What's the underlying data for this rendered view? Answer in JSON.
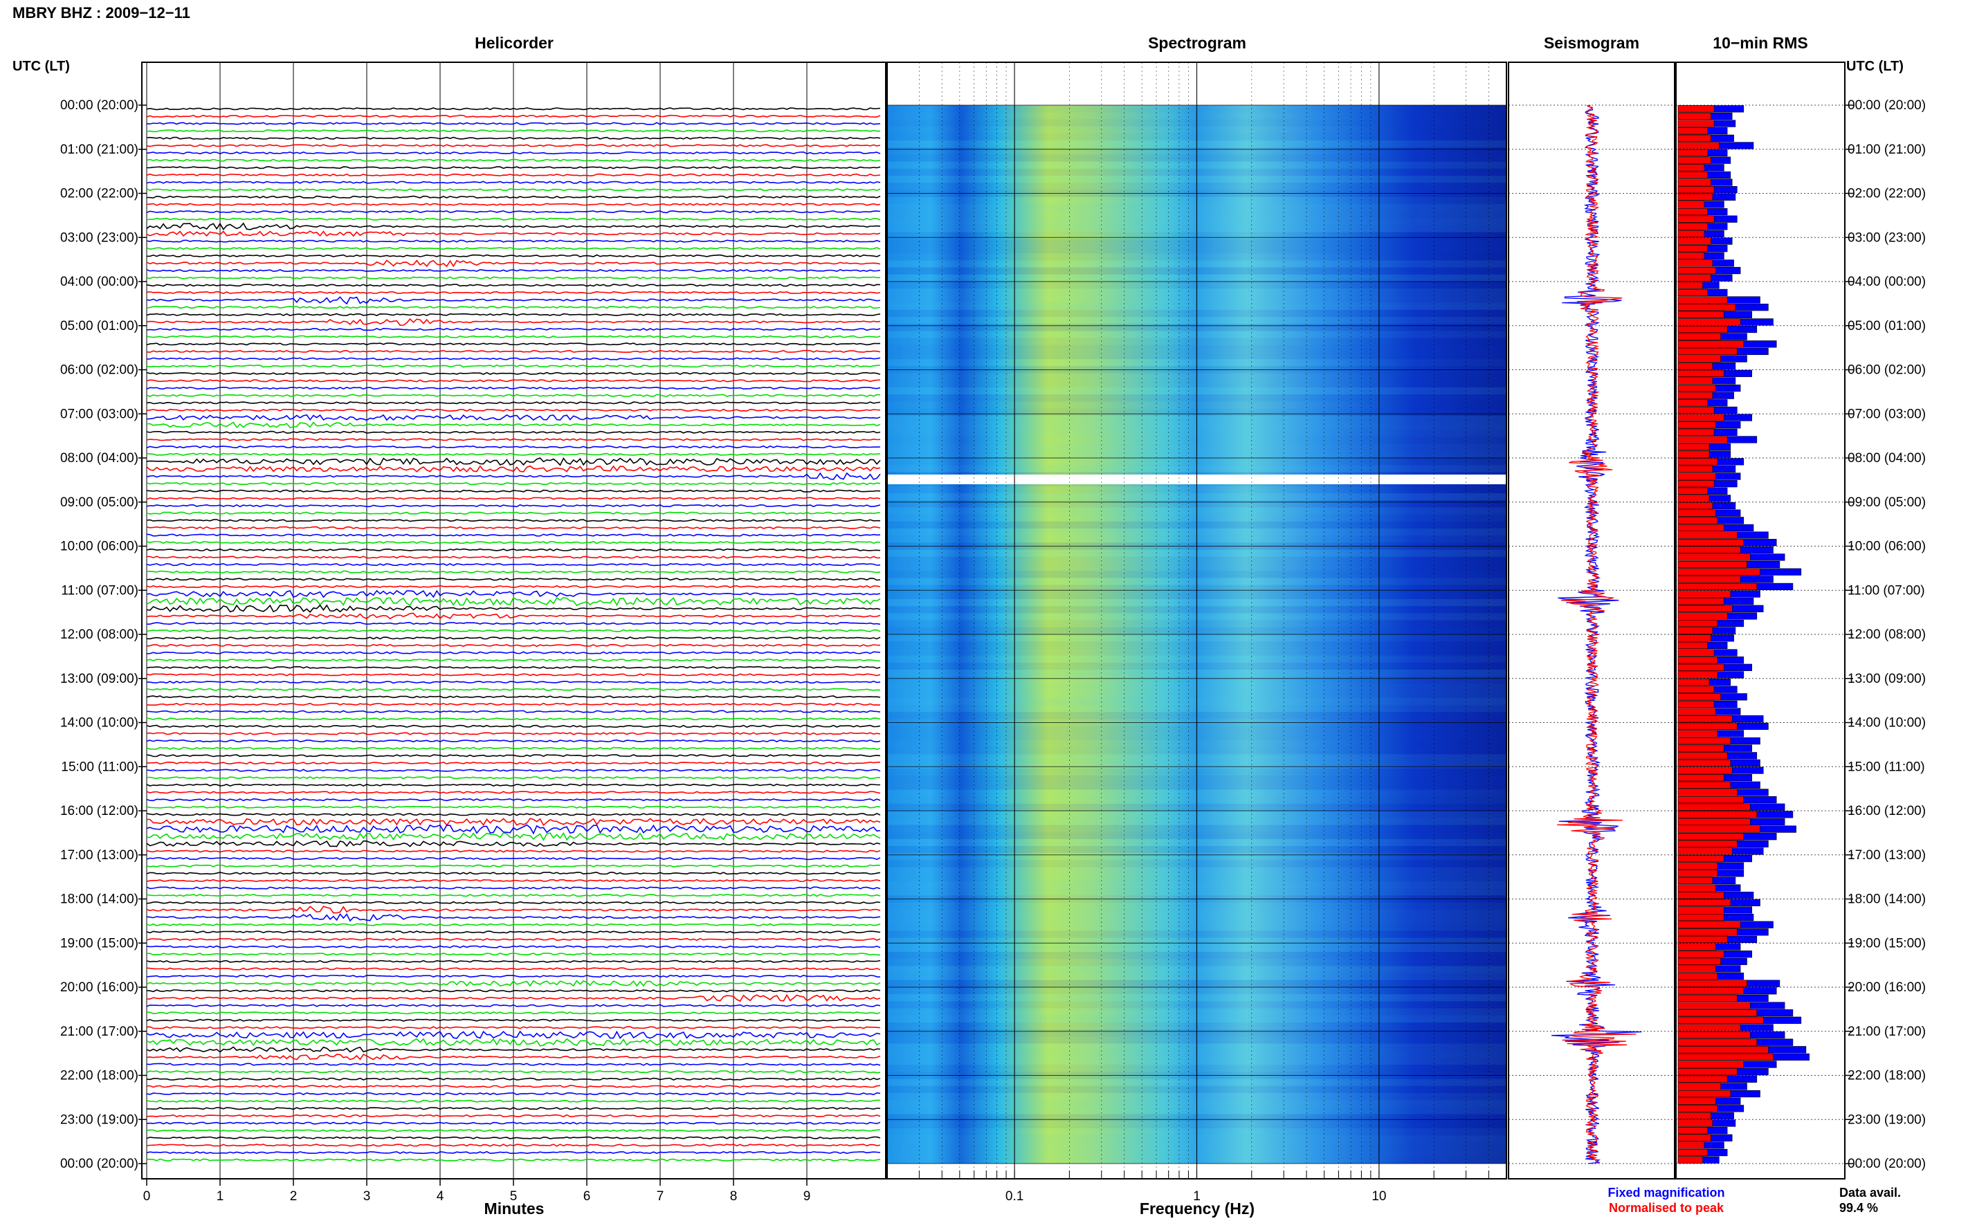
{
  "header": {
    "station_date": "MBRY BHZ : 2009−12−11"
  },
  "axis_labels": {
    "utc_left": "UTC (LT)",
    "utc_right": "UTC (LT)",
    "minutes": "Minutes",
    "frequency": "Frequency (Hz)"
  },
  "panels": {
    "helicorder": "Helicorder",
    "spectrogram": "Spectrogram",
    "seismogram": "Seismogram",
    "rms": "10−min RMS"
  },
  "legend": {
    "fixed": "Fixed magnification",
    "normalised": "Normalised to peak",
    "fixed_color": "#0000ff",
    "normalised_color": "#ff0000"
  },
  "data_avail": {
    "label": "Data avail.",
    "value": "99.4 %"
  },
  "colors": {
    "trace_cycle": [
      "#000000",
      "#ff0000",
      "#0000ff",
      "#00dd00"
    ],
    "spectro_low": "#0a2bd0",
    "spectro_mid": "#29a8f0",
    "spectro_high": "#e8f040"
  },
  "chart_data": [
    {
      "type": "line",
      "title": "Helicorder",
      "xlabel": "Minutes",
      "ylabel": "UTC (LT)",
      "xlim": [
        0,
        10
      ],
      "x_ticks": [
        "0",
        "1",
        "2",
        "3",
        "4",
        "5",
        "6",
        "7",
        "8",
        "9"
      ],
      "row_labels": [
        "00:00 (20:00)",
        "01:00 (21:00)",
        "02:00 (22:00)",
        "03:00 (23:00)",
        "04:00 (00:00)",
        "05:00 (01:00)",
        "06:00 (02:00)",
        "07:00 (03:00)",
        "08:00 (04:00)",
        "09:00 (05:00)",
        "10:00 (06:00)",
        "11:00 (07:00)",
        "12:00 (08:00)",
        "13:00 (09:00)",
        "14:00 (10:00)",
        "15:00 (11:00)",
        "16:00 (12:00)",
        "17:00 (13:00)",
        "18:00 (14:00)",
        "19:00 (15:00)",
        "20:00 (16:00)",
        "21:00 (17:00)",
        "22:00 (18:00)",
        "23:00 (19:00)",
        "00:00 (20:00)"
      ],
      "traces_per_hour": 6,
      "grid": true
    },
    {
      "type": "heatmap",
      "title": "Spectrogram",
      "xlabel": "Frequency (Hz)",
      "x_scale": "log",
      "xlim": [
        0.02,
        50
      ],
      "x_ticks": [
        "0.1",
        "1",
        "10"
      ],
      "ylim": [
        "00:00",
        "24:00"
      ],
      "data_gap": "08:20"
    },
    {
      "type": "line",
      "title": "Seismogram",
      "series": [
        {
          "name": "Fixed magnification",
          "color": "#0000ff"
        },
        {
          "name": "Normalised to peak",
          "color": "#ff0000"
        }
      ]
    },
    {
      "type": "bar",
      "title": "10−min RMS",
      "orientation": "horizontal",
      "categories_count": 144,
      "series": [
        {
          "name": "Fixed magnification",
          "color": "#0000ff",
          "values": [
            0.4,
            0.33,
            0.35,
            0.3,
            0.34,
            0.46,
            0.3,
            0.32,
            0.28,
            0.32,
            0.33,
            0.36,
            0.35,
            0.28,
            0.3,
            0.36,
            0.3,
            0.28,
            0.33,
            0.3,
            0.28,
            0.34,
            0.38,
            0.33,
            0.25,
            0.3,
            0.5,
            0.55,
            0.45,
            0.58,
            0.48,
            0.42,
            0.6,
            0.55,
            0.42,
            0.35,
            0.45,
            0.35,
            0.38,
            0.34,
            0.3,
            0.36,
            0.45,
            0.38,
            0.36,
            0.48,
            0.32,
            0.32,
            0.4,
            0.35,
            0.38,
            0.36,
            0.3,
            0.32,
            0.35,
            0.38,
            0.4,
            0.46,
            0.55,
            0.6,
            0.58,
            0.65,
            0.62,
            0.75,
            0.58,
            0.7,
            0.5,
            0.46,
            0.52,
            0.48,
            0.4,
            0.35,
            0.34,
            0.3,
            0.36,
            0.4,
            0.45,
            0.4,
            0.32,
            0.36,
            0.42,
            0.36,
            0.38,
            0.52,
            0.55,
            0.4,
            0.5,
            0.45,
            0.48,
            0.5,
            0.52,
            0.45,
            0.5,
            0.55,
            0.6,
            0.65,
            0.7,
            0.65,
            0.72,
            0.6,
            0.55,
            0.52,
            0.45,
            0.4,
            0.4,
            0.35,
            0.38,
            0.46,
            0.5,
            0.45,
            0.46,
            0.58,
            0.55,
            0.48,
            0.38,
            0.45,
            0.42,
            0.38,
            0.4,
            0.62,
            0.6,
            0.55,
            0.65,
            0.7,
            0.75,
            0.58,
            0.65,
            0.7,
            0.78,
            0.8,
            0.6,
            0.55,
            0.48,
            0.42,
            0.5,
            0.38,
            0.4,
            0.34,
            0.35,
            0.3,
            0.33,
            0.28,
            0.3,
            0.25
          ]
        },
        {
          "name": "Normalised to peak",
          "color": "#ff0000",
          "values": [
            0.22,
            0.2,
            0.22,
            0.18,
            0.2,
            0.25,
            0.18,
            0.2,
            0.16,
            0.18,
            0.2,
            0.22,
            0.21,
            0.16,
            0.18,
            0.22,
            0.18,
            0.16,
            0.2,
            0.18,
            0.16,
            0.21,
            0.23,
            0.2,
            0.15,
            0.18,
            0.3,
            0.35,
            0.28,
            0.38,
            0.3,
            0.26,
            0.4,
            0.36,
            0.26,
            0.21,
            0.28,
            0.21,
            0.23,
            0.21,
            0.18,
            0.22,
            0.28,
            0.23,
            0.22,
            0.3,
            0.19,
            0.19,
            0.24,
            0.21,
            0.23,
            0.22,
            0.18,
            0.19,
            0.21,
            0.23,
            0.24,
            0.28,
            0.36,
            0.4,
            0.38,
            0.44,
            0.42,
            0.5,
            0.38,
            0.48,
            0.32,
            0.28,
            0.33,
            0.3,
            0.24,
            0.21,
            0.2,
            0.18,
            0.22,
            0.24,
            0.28,
            0.24,
            0.19,
            0.22,
            0.26,
            0.22,
            0.23,
            0.33,
            0.36,
            0.24,
            0.32,
            0.28,
            0.3,
            0.32,
            0.33,
            0.28,
            0.32,
            0.36,
            0.4,
            0.44,
            0.48,
            0.44,
            0.5,
            0.4,
            0.36,
            0.33,
            0.28,
            0.24,
            0.24,
            0.21,
            0.23,
            0.28,
            0.32,
            0.28,
            0.28,
            0.38,
            0.36,
            0.3,
            0.23,
            0.28,
            0.26,
            0.23,
            0.24,
            0.42,
            0.4,
            0.36,
            0.44,
            0.48,
            0.52,
            0.38,
            0.44,
            0.48,
            0.55,
            0.58,
            0.4,
            0.36,
            0.3,
            0.26,
            0.32,
            0.23,
            0.24,
            0.2,
            0.21,
            0.18,
            0.2,
            0.16,
            0.18,
            0.15
          ]
        }
      ]
    }
  ]
}
